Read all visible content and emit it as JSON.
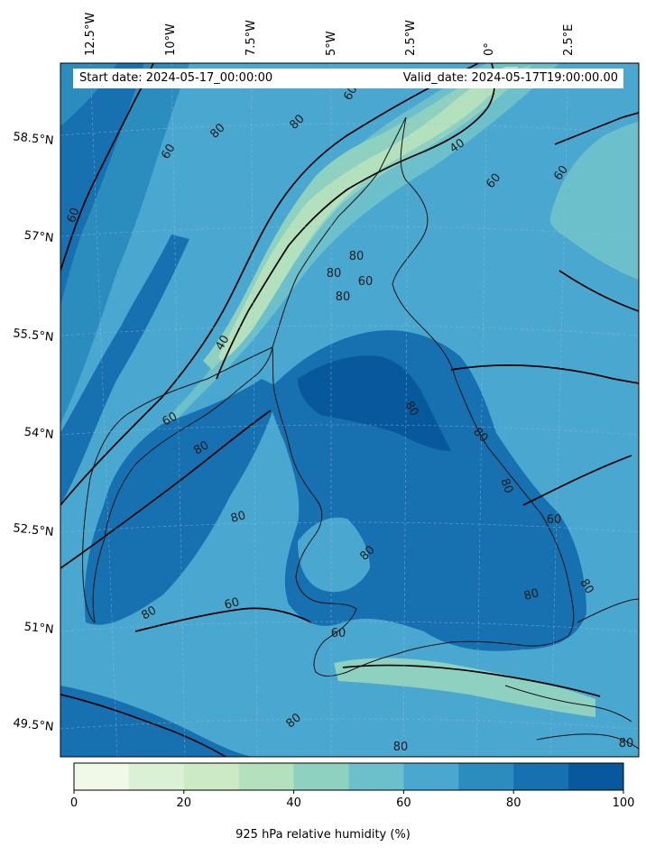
{
  "header": {
    "start_date": "Start date: 2024-05-17_00:00:00",
    "valid_date": "Valid_date: 2024-05-17T19:00:00.00"
  },
  "map": {
    "variable": "925 hPa relative humidity (%)",
    "lon_labels": [
      "12.5°W",
      "10°W",
      "7.5°W",
      "5°W",
      "2.5°W",
      "0°",
      "2.5°E"
    ],
    "lat_labels": [
      "58.5°N",
      "57°N",
      "55.5°N",
      "54°N",
      "52.5°N",
      "51°N",
      "49.5°N"
    ],
    "contour_levels": [
      40,
      60,
      80
    ],
    "contour_labels": [
      "60",
      "80",
      "60",
      "80",
      "40",
      "60",
      "60",
      "60",
      "80",
      "60",
      "80",
      "80",
      "40",
      "60",
      "80",
      "80",
      "80",
      "80",
      "80",
      "80",
      "60",
      "80",
      "60",
      "80",
      "60",
      "80",
      "80",
      "80",
      "80"
    ]
  },
  "colorbar": {
    "label": "925 hPa relative humidity (%)",
    "ticks": [
      "0",
      "20",
      "40",
      "60",
      "80",
      "100"
    ],
    "levels": [
      0,
      10,
      20,
      30,
      40,
      50,
      60,
      70,
      80,
      90,
      100
    ],
    "colors": [
      "#f0f9e8",
      "#dbf1d6",
      "#ccebc5",
      "#b3e0bd",
      "#8fd1c1",
      "#6cc0cc",
      "#4aa8d0",
      "#2b8cbe",
      "#1770b0",
      "#08589e"
    ]
  }
}
